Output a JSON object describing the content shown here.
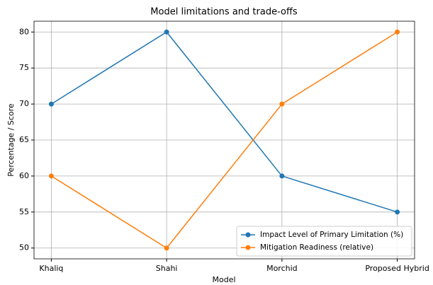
{
  "chart_data": {
    "type": "line",
    "title": "Model limitations and trade-offs",
    "x_label": "Model",
    "y_label": "Percentage / Score",
    "categories": [
      "Khaliq",
      "Shahi",
      "Morchid",
      "Proposed Hybrid"
    ],
    "series": [
      {
        "name": "Impact Level of Primary Limitation (%)",
        "color": "#1f77b4",
        "values": [
          70,
          80,
          60,
          55
        ]
      },
      {
        "name": "Mitigation Readiness (relative)",
        "color": "#ff7f0e",
        "values": [
          60,
          50,
          70,
          80
        ]
      }
    ],
    "ylim": [
      48.5,
      81.5
    ],
    "yticks": [
      50,
      55,
      60,
      65,
      70,
      75,
      80
    ],
    "grid": true,
    "legend": "lower right"
  }
}
